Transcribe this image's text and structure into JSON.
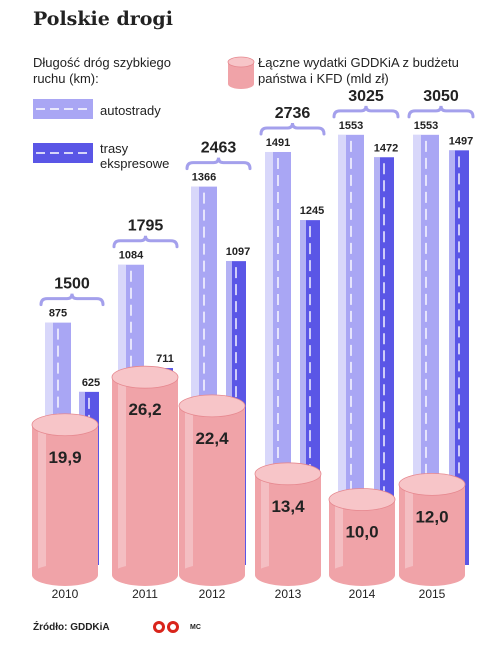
{
  "title": "Polskie drogi",
  "legend": {
    "roads_title": "Długość dróg szybkiego ruchu (km):",
    "spending_title": "Łączne wydatki GDDKiA z budżetu państwa i KFD (mld zł)",
    "motorways": "autostrady",
    "expressways": "trasy ekspresowe"
  },
  "source": "Źródło: GDDKiA",
  "credit": "MC",
  "colors": {
    "motorway": "#a9a6f4",
    "expressway": "#5a56e6",
    "cylinder": "#f0a3a8",
    "bracket": "#a4a0ec"
  },
  "chart_data": {
    "type": "bar",
    "categories": [
      "2010",
      "2011",
      "2012",
      "2013",
      "2014",
      "2015"
    ],
    "series": [
      {
        "name": "autostrady",
        "values": [
          875,
          1084,
          1366,
          1491,
          1553,
          1553
        ]
      },
      {
        "name": "trasy ekspresowe",
        "values": [
          625,
          711,
          1097,
          1245,
          1472,
          1497
        ]
      }
    ],
    "totals": [
      1500,
      1795,
      2463,
      2736,
      3025,
      3050
    ],
    "spending": {
      "name": "Łączne wydatki GDDKiA z budżetu państwa i KFD (mld zł)",
      "values": [
        "19,9",
        "26,2",
        "22,4",
        "13,4",
        "10,0",
        "12,0"
      ],
      "numeric": [
        19.9,
        26.2,
        22.4,
        13.4,
        10.0,
        12.0
      ]
    },
    "ylabel": "Długość dróg szybkiego ruchu (km)",
    "grid": false,
    "legend_position": "top-left"
  }
}
